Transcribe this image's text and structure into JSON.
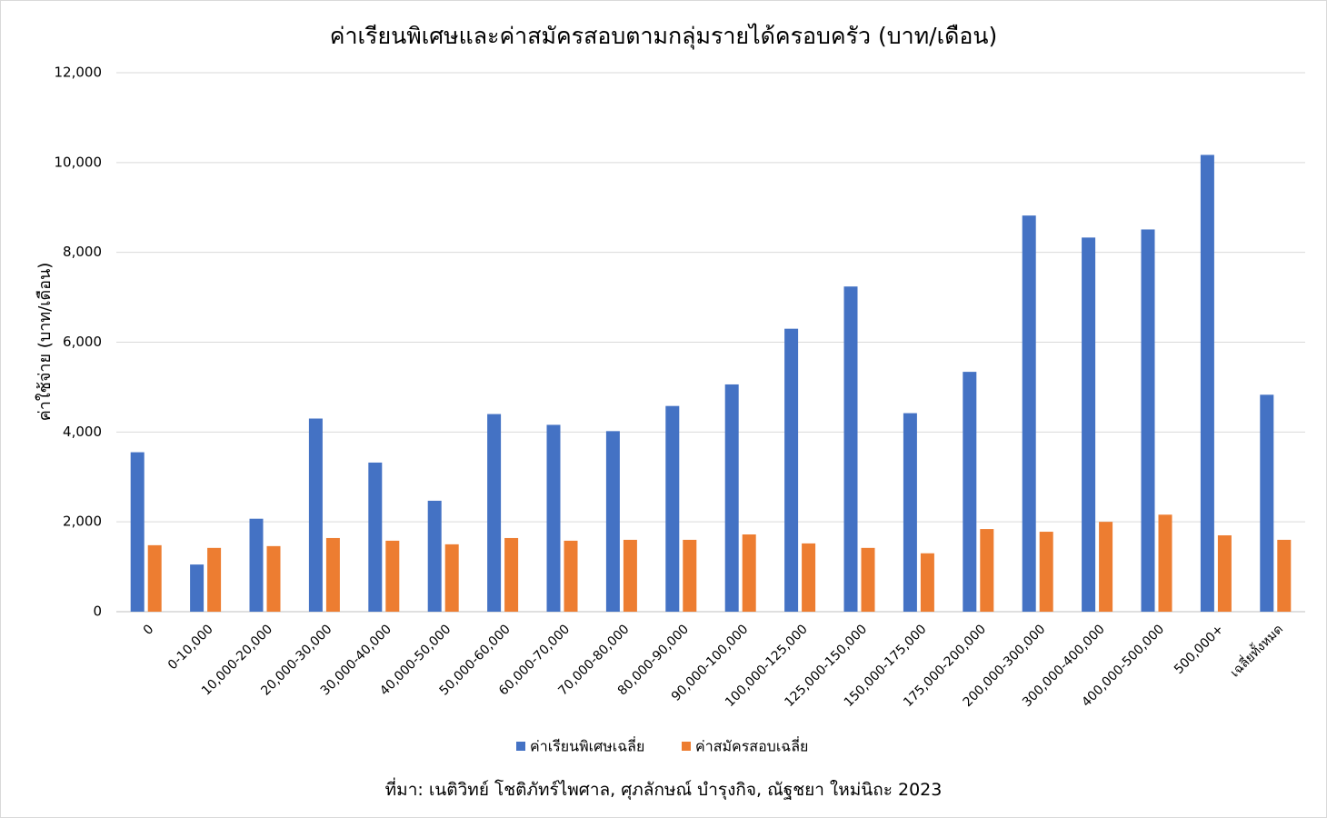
{
  "chart_data": {
    "type": "bar",
    "title": "ค่าเรียนพิเศษและค่าสมัครสอบตามกลุ่มรายได้ครอบครัว (บาท/เดือน)",
    "xlabel": "",
    "ylabel": "ค่าใช้จ่าย (บาท/เดือน)",
    "ylim": [
      0,
      12000
    ],
    "yticks": [
      0,
      2000,
      4000,
      6000,
      8000,
      10000,
      12000
    ],
    "ytick_labels": [
      "0",
      "2,000",
      "4,000",
      "6,000",
      "8,000",
      "10,000",
      "12,000"
    ],
    "grid": true,
    "legend_position": "bottom",
    "categories": [
      "0",
      "0-10,000",
      "10,000-20,000",
      "20,000-30,000",
      "30,000-40,000",
      "40,000-50,000",
      "50,000-60,000",
      "60,000-70,000",
      "70,000-80,000",
      "80,000-90,000",
      "90,000-100,000",
      "100,000-125,000",
      "125,000-150,000",
      "150,000-175,000",
      "175,000-200,000",
      "200,000-300,000",
      "300,000-400,000",
      "400,000-500,000",
      "500,000+",
      "เฉลี่ยทั้งหมด"
    ],
    "series": [
      {
        "name": "ค่าเรียนพิเศษเฉลี่ย",
        "color": "#4472c4",
        "values": [
          3550,
          1050,
          2070,
          4300,
          3320,
          2470,
          4400,
          4160,
          4020,
          4580,
          5060,
          6300,
          7240,
          4420,
          5340,
          8820,
          8330,
          8510,
          10170,
          4830
        ]
      },
      {
        "name": "ค่าสมัครสอบเฉลี่ย",
        "color": "#ed7d31",
        "values": [
          1480,
          1420,
          1460,
          1640,
          1580,
          1500,
          1640,
          1580,
          1600,
          1600,
          1720,
          1520,
          1420,
          1300,
          1840,
          1780,
          2000,
          2160,
          1700,
          1600
        ]
      }
    ]
  },
  "source_note": "ที่มา: เนติวิทย์ โชติภัทร์ไพศาล, ศุภลักษณ์ บำรุงกิจ, ณัฐชยา ใหม่นิถะ 2023"
}
